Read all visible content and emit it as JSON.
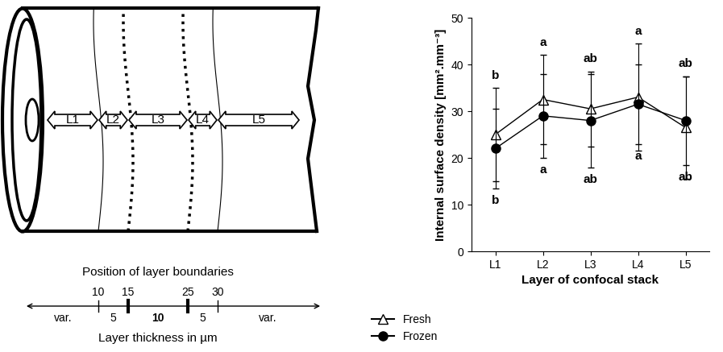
{
  "diagram": {
    "layers": [
      "L1",
      "L2",
      "L3",
      "L4",
      "L5"
    ],
    "scale": {
      "title": "Position of layer boundaries",
      "boundaries": [
        {
          "position": 10,
          "line_style": "solid"
        },
        {
          "position": 15,
          "line_style": "dotted"
        },
        {
          "position": 25,
          "line_style": "dotted"
        },
        {
          "position": 30,
          "line_style": "solid"
        }
      ],
      "thicknesses": [
        "var.",
        5,
        10,
        5,
        "var."
      ],
      "caption": "Layer thickness in µm"
    }
  },
  "chart_data": {
    "type": "line",
    "categories": [
      "L1",
      "L2",
      "L3",
      "L4",
      "L5"
    ],
    "xlabel": "Layer of confocal stack",
    "ylabel": "Internal surface density [mm².mm⁻³]",
    "ylim": [
      0,
      50
    ],
    "yticks": [
      0,
      10,
      20,
      30,
      40,
      50
    ],
    "legend": "lower left",
    "series": [
      {
        "name": "Fresh",
        "color": "#000000",
        "marker": "open_triangle",
        "line_style": "solid",
        "values": [
          25,
          32.5,
          30.5,
          33,
          26.5
        ],
        "errors": [
          10,
          9.5,
          8,
          11.5,
          11
        ],
        "letters": [
          "b",
          "a",
          "ab",
          "a",
          "ab"
        ]
      },
      {
        "name": "Frozen",
        "color": "#000000",
        "marker": "circle",
        "line_style": "solid",
        "values": [
          22,
          29,
          28,
          31.5,
          28
        ],
        "errors": [
          8.5,
          9,
          10,
          8.5,
          9.5
        ],
        "letters": [
          "b",
          "a",
          "ab",
          "a",
          "ab"
        ]
      }
    ]
  }
}
